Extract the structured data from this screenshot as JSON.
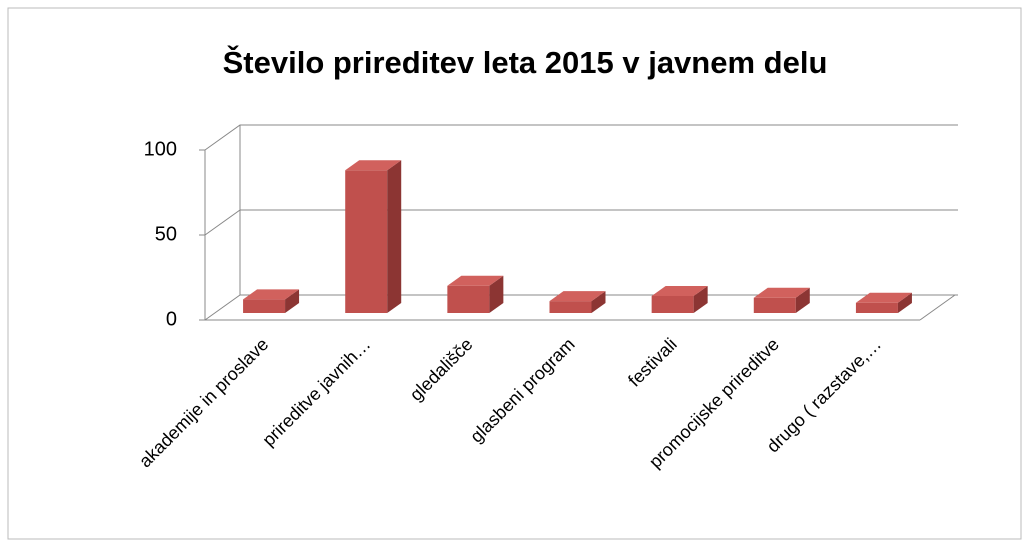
{
  "chart_data": {
    "type": "bar3d",
    "title": "Število prireditev leta 2015 v javnem delu",
    "categories": [
      "akademije in proslave",
      "prireditve javnih…",
      "gledališče",
      "glasbeni program",
      "festivali",
      "promocijske prireditve",
      "drugo ( razstave,…"
    ],
    "values": [
      8,
      84,
      16,
      7,
      10,
      9,
      6
    ],
    "color": "#c0504d",
    "ylim": [
      0,
      100
    ],
    "yticks": [
      0,
      50,
      100
    ],
    "grid": true
  }
}
